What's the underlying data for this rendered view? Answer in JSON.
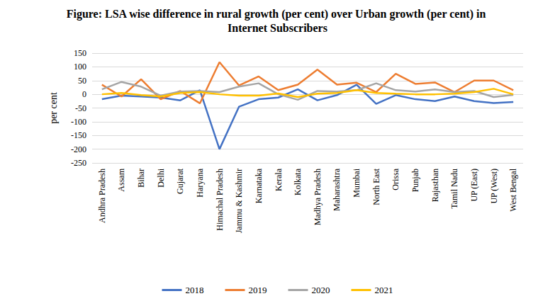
{
  "chart_data": {
    "type": "line",
    "title": "Figure: LSA wise difference in rural growth (per cent) over Urban growth (per cent) in Internet Subscribers",
    "y_label": "per cent",
    "categories": [
      "Andhra Pradesh",
      "Assam",
      "Bihar",
      "Delhi",
      "Gujarat",
      "Haryana",
      "Himachal Pradesh",
      "Jammu & Kashmir",
      "Karnataka",
      "Kerala",
      "Kolkata",
      "Madhya Pradesh",
      "Maharashtra",
      "Mumbai",
      "North East",
      "Orissa",
      "Punjab",
      "Rajasthan",
      "Tamil Nadu",
      "UP (East)",
      "UP (West)",
      "West Bengal"
    ],
    "series": [
      {
        "name": "2018",
        "color": "#4472c4",
        "values": [
          -18,
          -5,
          -8,
          -12,
          -22,
          15,
          -200,
          -45,
          -18,
          -12,
          18,
          -22,
          -3,
          35,
          -35,
          -3,
          -18,
          -25,
          -8,
          -25,
          -32,
          -28
        ]
      },
      {
        "name": "2019",
        "color": "#ed7d31",
        "values": [
          35,
          -8,
          55,
          -18,
          12,
          -33,
          117,
          32,
          65,
          15,
          35,
          90,
          35,
          42,
          8,
          75,
          38,
          43,
          8,
          50,
          50,
          15
        ]
      },
      {
        "name": "2020",
        "color": "#a5a5a5",
        "values": [
          18,
          45,
          28,
          -5,
          10,
          12,
          8,
          28,
          40,
          0,
          -20,
          12,
          10,
          15,
          40,
          15,
          10,
          18,
          8,
          12,
          -10,
          -2
        ]
      },
      {
        "name": "2021",
        "color": "#ffc000",
        "values": [
          0,
          5,
          -3,
          -8,
          5,
          8,
          0,
          -5,
          -5,
          3,
          -10,
          2,
          5,
          15,
          5,
          2,
          0,
          0,
          2,
          8,
          20,
          0
        ]
      }
    ],
    "ylim": [
      -250,
      150
    ],
    "yticks": [
      -250,
      -200,
      -150,
      -100,
      -50,
      0,
      50,
      100,
      150
    ],
    "grid": true,
    "legend": "bottom"
  }
}
